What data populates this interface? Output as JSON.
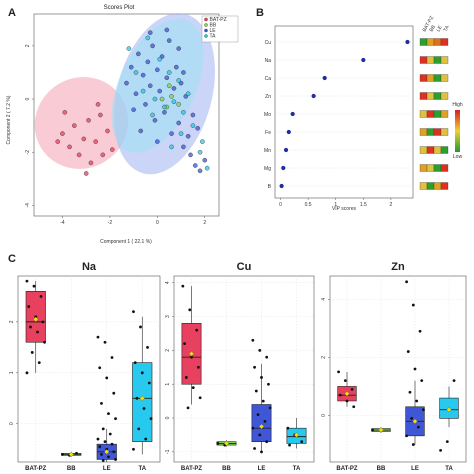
{
  "panels": {
    "a": "A",
    "b": "B",
    "c": "C"
  },
  "colors": {
    "BAT-PZ": "#e8405f",
    "BB": "#7dd64b",
    "LE": "#3f56d6",
    "TA": "#27c9ee"
  },
  "chart_data": [
    {
      "type": "scatter",
      "title": "Scores Plot",
      "xlabel": "Component 1 ( 22.1 %)",
      "ylabel": "Component 2 ( 7.2 %)",
      "xlim": [
        -5.2,
        2.6
      ],
      "ylim": [
        -4.4,
        3.2
      ],
      "xticks": [
        -4,
        -2,
        0,
        2
      ],
      "yticks": [
        -4,
        -2,
        0,
        2
      ],
      "legend_placement": "top-left",
      "legend": [
        "BAT-PZ",
        "BB",
        "LE",
        "TA"
      ],
      "ellipses": [
        {
          "group": "BAT-PZ",
          "cx": -3.2,
          "cy": -0.9,
          "rx": 2.0,
          "ry": 1.7,
          "angle": -35,
          "color": "#f4a0b0"
        },
        {
          "group": "LE",
          "cx": 0.3,
          "cy": 0.2,
          "rx": 2.0,
          "ry": 3.1,
          "angle": 15,
          "color": "#9fb3f0"
        },
        {
          "group": "TA",
          "cx": 0.0,
          "cy": 0.5,
          "rx": 1.6,
          "ry": 2.7,
          "angle": 25,
          "color": "#9fe0f5"
        }
      ],
      "series": [
        {
          "name": "BAT-PZ",
          "color": "#e8405f",
          "points": [
            [
              -4.2,
              -1.6
            ],
            [
              -4.0,
              -1.3
            ],
            [
              -3.7,
              -1.8
            ],
            [
              -3.5,
              -1.0
            ],
            [
              -3.3,
              -2.1
            ],
            [
              -3.1,
              -1.5
            ],
            [
              -2.9,
              -0.8
            ],
            [
              -2.8,
              -2.4
            ],
            [
              -2.6,
              -1.6
            ],
            [
              -2.4,
              -0.6
            ],
            [
              -2.3,
              -2.1
            ],
            [
              -3.9,
              -0.5
            ],
            [
              -2.1,
              -1.2
            ],
            [
              -3.0,
              -2.8
            ],
            [
              -2.5,
              -0.2
            ],
            [
              -1.9,
              -1.9
            ]
          ]
        },
        {
          "name": "BB",
          "color": "#7dd64b",
          "points": [
            [
              0.4,
              -0.3
            ],
            [
              0.6,
              0.1
            ],
            [
              0.2,
              0.0
            ],
            [
              0.9,
              -0.2
            ],
            [
              0.5,
              0.5
            ]
          ]
        },
        {
          "name": "LE",
          "color": "#3f56d6",
          "points": [
            [
              -1.3,
              0.6
            ],
            [
              -1.1,
              1.2
            ],
            [
              -0.9,
              0.2
            ],
            [
              -0.8,
              1.7
            ],
            [
              -0.6,
              0.9
            ],
            [
              -0.5,
              -0.2
            ],
            [
              -0.4,
              1.4
            ],
            [
              -0.3,
              0.5
            ],
            [
              -0.2,
              2.0
            ],
            [
              -0.1,
              -0.8
            ],
            [
              0.0,
              1.1
            ],
            [
              0.1,
              0.3
            ],
            [
              0.2,
              1.6
            ],
            [
              0.3,
              -0.5
            ],
            [
              0.4,
              0.8
            ],
            [
              0.5,
              2.2
            ],
            [
              0.6,
              -1.3
            ],
            [
              0.7,
              0.4
            ],
            [
              0.8,
              1.2
            ],
            [
              0.9,
              -0.9
            ],
            [
              1.0,
              0.6
            ],
            [
              1.1,
              -1.8
            ],
            [
              1.2,
              0.1
            ],
            [
              1.3,
              -1.4
            ],
            [
              1.4,
              -2.1
            ],
            [
              1.5,
              -0.6
            ],
            [
              1.6,
              -2.5
            ],
            [
              1.7,
              -1.1
            ],
            [
              1.8,
              -2.7
            ],
            [
              2.0,
              -2.3
            ],
            [
              -0.7,
              -1.2
            ],
            [
              0.0,
              -1.6
            ],
            [
              -1.0,
              -0.4
            ],
            [
              0.4,
              2.6
            ],
            [
              -0.3,
              2.5
            ],
            [
              0.9,
              1.9
            ],
            [
              1.1,
              1.0
            ]
          ]
        },
        {
          "name": "TA",
          "color": "#27c9ee",
          "points": [
            [
              -0.9,
              1.0
            ],
            [
              -0.6,
              0.3
            ],
            [
              -0.4,
              2.3
            ],
            [
              -0.1,
              0.0
            ],
            [
              0.1,
              1.5
            ],
            [
              0.3,
              -0.3
            ],
            [
              0.5,
              1.0
            ],
            [
              0.7,
              -0.1
            ],
            [
              0.9,
              0.7
            ],
            [
              1.1,
              -0.5
            ],
            [
              1.3,
              0.2
            ],
            [
              1.5,
              -1.0
            ],
            [
              1.8,
              -2.0
            ],
            [
              2.1,
              -2.6
            ],
            [
              -0.2,
              -0.6
            ],
            [
              0.6,
              -1.8
            ],
            [
              1.0,
              -1.3
            ],
            [
              -1.2,
              1.9
            ],
            [
              1.9,
              -1.6
            ]
          ]
        }
      ]
    },
    {
      "type": "scatter",
      "xlabel": "VIP scores",
      "xlim": [
        -0.1,
        2.4
      ],
      "xticks": [
        0,
        0.5,
        1,
        1.5,
        2
      ],
      "categories": [
        "Cu",
        "Na",
        "Ca",
        "Zn",
        "Mo",
        "Fe",
        "Mn",
        "Mg",
        "B"
      ],
      "values": [
        2.3,
        1.5,
        0.8,
        0.6,
        0.22,
        0.15,
        0.1,
        0.05,
        0.02
      ],
      "legend_title": "",
      "legend": [
        "BAT-PZ",
        "BB",
        "LE",
        "TA"
      ],
      "colorbar": {
        "high": "High",
        "low": "Low"
      },
      "heatmap": [
        [
          "#2ca02c",
          "#e0a020",
          "#e07020",
          "#e03020"
        ],
        [
          "#e03020",
          "#e0c040",
          "#2ca02c",
          "#e0c040"
        ],
        [
          "#e03020",
          "#e0a020",
          "#2ca02c",
          "#e0c040"
        ],
        [
          "#e03020",
          "#e0c040",
          "#2ca02c",
          "#e0c040"
        ],
        [
          "#e0c040",
          "#e03020",
          "#2ca02c",
          "#e0a020"
        ],
        [
          "#e0a020",
          "#2ca02c",
          "#e03020",
          "#e0c040"
        ],
        [
          "#e0c040",
          "#e03020",
          "#e0c040",
          "#2ca02c"
        ],
        [
          "#e0a020",
          "#e0c040",
          "#2ca02c",
          "#e03020"
        ],
        [
          "#e0c040",
          "#2ca02c",
          "#e0a020",
          "#e03020"
        ]
      ]
    },
    {
      "type": "box",
      "title": "Na",
      "categories": [
        "BAT-PZ",
        "BB",
        "LE",
        "TA"
      ],
      "ylim": [
        -0.75,
        2.9
      ],
      "yticks": [
        0,
        1,
        2
      ],
      "boxes": [
        {
          "min": 1.0,
          "q1": 1.6,
          "median": 2.0,
          "q3": 2.6,
          "max": 2.8,
          "mean": 2.05,
          "points": [
            2.8,
            2.7,
            2.5,
            2.3,
            2.1,
            2.0,
            1.9,
            1.8,
            1.6,
            1.4,
            1.2,
            1.0
          ]
        },
        {
          "min": -0.65,
          "q1": -0.62,
          "median": -0.6,
          "q3": -0.58,
          "max": -0.55,
          "mean": -0.6,
          "points": [
            -0.6,
            -0.62,
            -0.58
          ]
        },
        {
          "min": -0.75,
          "q1": -0.7,
          "median": -0.55,
          "q3": -0.4,
          "max": -0.1,
          "mean": -0.55,
          "points": [
            1.7,
            1.6,
            1.3,
            1.1,
            0.9,
            0.6,
            0.4,
            0.2,
            0.1,
            -0.1,
            -0.2,
            -0.3,
            -0.35,
            -0.4,
            -0.45,
            -0.5,
            -0.55,
            -0.6,
            -0.65,
            -0.7,
            -0.72
          ]
        },
        {
          "min": -0.6,
          "q1": -0.35,
          "median": 0.5,
          "q3": 1.2,
          "max": 2.1,
          "mean": 0.5,
          "points": [
            2.2,
            1.9,
            1.5,
            1.2,
            1.0,
            0.8,
            0.5,
            0.3,
            0.1,
            -0.1,
            -0.3,
            -0.5
          ]
        }
      ]
    },
    {
      "type": "box",
      "title": "Cu",
      "categories": [
        "BAT-PZ",
        "BB",
        "LE",
        "TA"
      ],
      "ylim": [
        -1.3,
        4.2
      ],
      "yticks": [
        -1,
        0,
        1,
        2,
        3,
        4
      ],
      "boxes": [
        {
          "min": 0.4,
          "q1": 1.0,
          "median": 1.8,
          "q3": 2.8,
          "max": 3.9,
          "mean": 1.9,
          "points": [
            3.9,
            3.2,
            2.6,
            2.2,
            1.8,
            1.5,
            1.2,
            0.9,
            0.6,
            0.3
          ]
        },
        {
          "min": -0.85,
          "q1": -0.8,
          "median": -0.75,
          "q3": -0.7,
          "max": -0.65,
          "mean": -0.75,
          "points": [
            -0.75,
            -0.8
          ]
        },
        {
          "min": -1.0,
          "q1": -0.7,
          "median": -0.3,
          "q3": 0.4,
          "max": 1.6,
          "mean": -0.25,
          "points": [
            2.3,
            2.0,
            1.8,
            1.5,
            1.2,
            1.0,
            0.8,
            0.5,
            0.3,
            0.1,
            -0.1,
            -0.3,
            -0.5,
            -0.7,
            -0.9,
            -1.0
          ]
        },
        {
          "min": -0.9,
          "q1": -0.75,
          "median": -0.55,
          "q3": -0.3,
          "max": 0.0,
          "mean": -0.5,
          "points": [
            -0.3,
            -0.5,
            -0.7,
            -0.8
          ]
        }
      ]
    },
    {
      "type": "box",
      "title": "Zn",
      "categories": [
        "BAT-PZ",
        "BB",
        "LE",
        "TA"
      ],
      "ylim": [
        -1.6,
        4.8
      ],
      "yticks": [
        0,
        2,
        4
      ],
      "boxes": [
        {
          "min": 0.3,
          "q1": 0.5,
          "median": 0.7,
          "q3": 1.0,
          "max": 1.5,
          "mean": 0.75,
          "points": [
            1.5,
            1.2,
            0.9,
            0.7,
            0.5,
            0.3
          ]
        },
        {
          "min": -0.6,
          "q1": -0.55,
          "median": -0.5,
          "q3": -0.45,
          "max": -0.4,
          "mean": -0.5,
          "points": [
            -0.5
          ]
        },
        {
          "min": -1.0,
          "q1": -0.7,
          "median": -0.2,
          "q3": 0.3,
          "max": 1.2,
          "mean": -0.2,
          "points": [
            4.6,
            3.8,
            2.9,
            2.2,
            1.6,
            1.2,
            0.8,
            0.5,
            0.2,
            -0.1,
            -0.4,
            -0.7,
            -1.0
          ]
        },
        {
          "min": -0.4,
          "q1": -0.1,
          "median": 0.2,
          "q3": 0.6,
          "max": 1.0,
          "mean": 0.2,
          "points": [
            -1.2,
            -0.9,
            1.2
          ]
        }
      ]
    }
  ]
}
